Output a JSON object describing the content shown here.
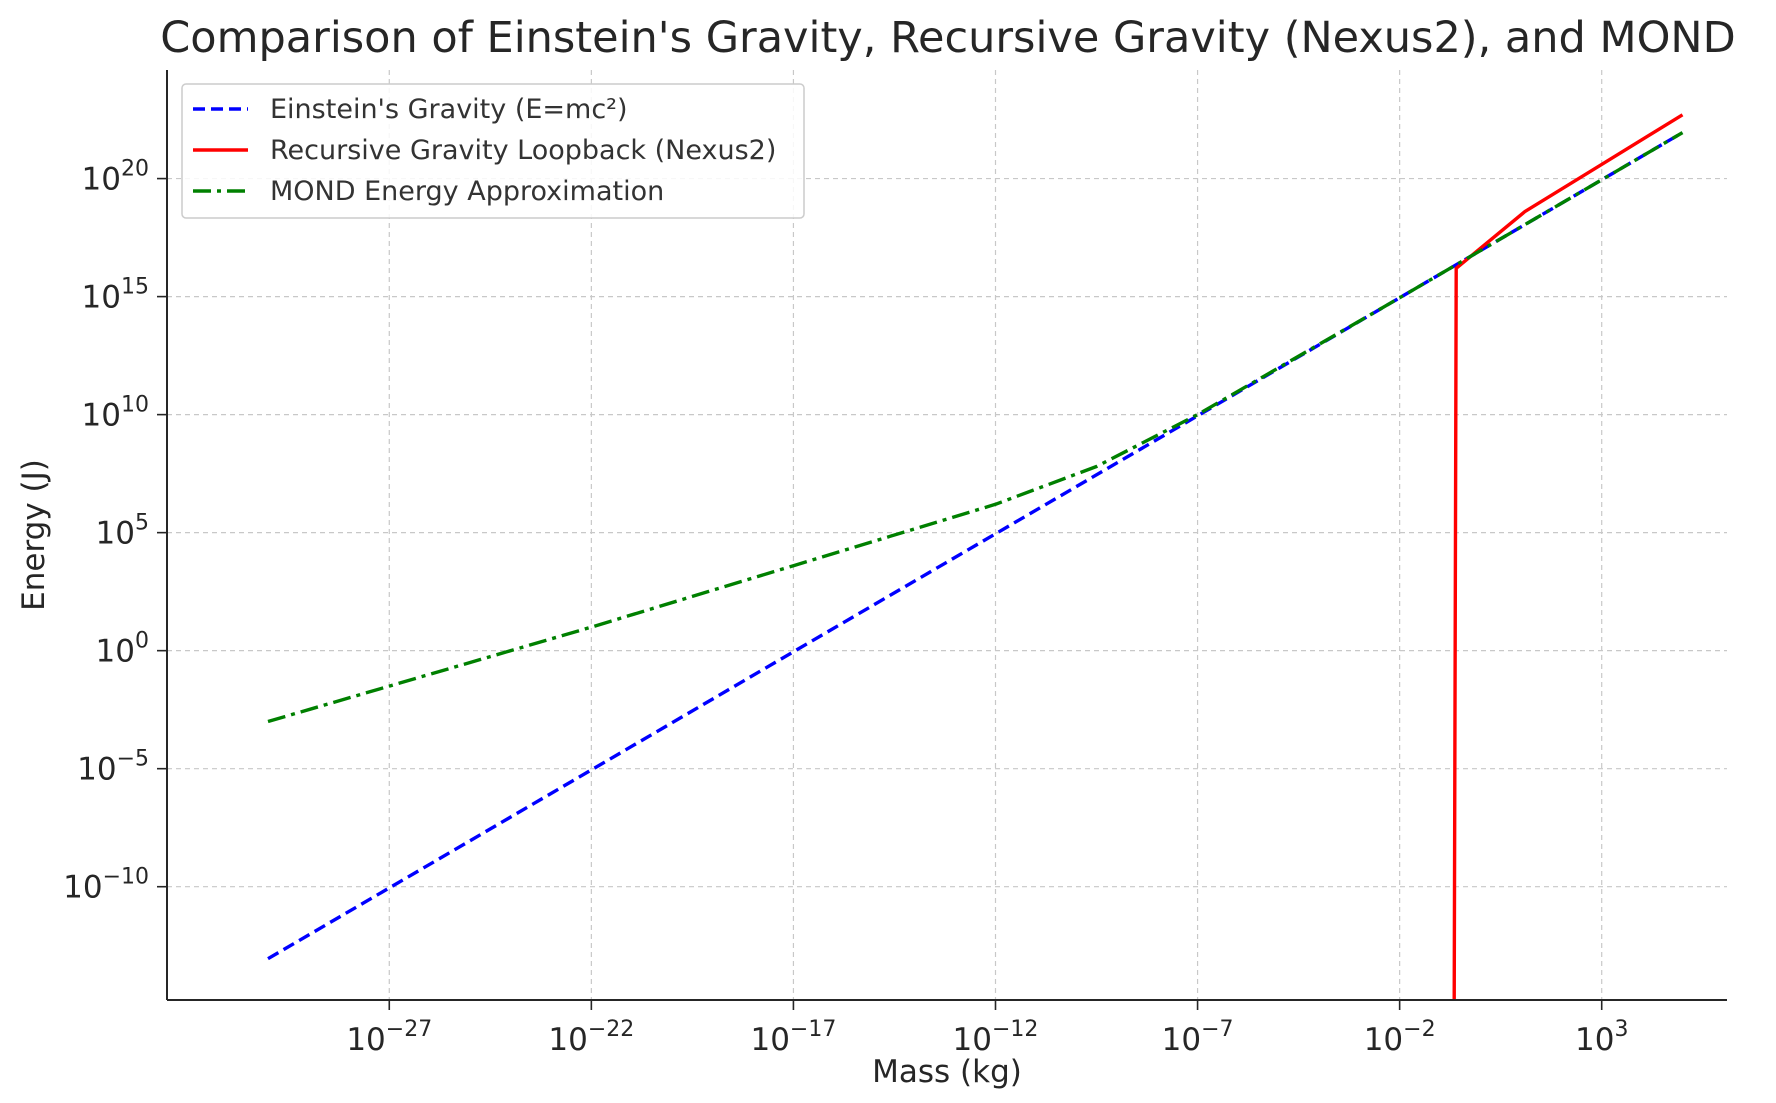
{
  "chart_data": {
    "type": "line",
    "title": "Comparison of Einstein's Gravity, Recursive Gravity (Nexus2), and MOND",
    "xlabel": "Mass (kg)",
    "ylabel": "Energy (J)",
    "xscale": "log",
    "yscale": "log",
    "xlim_exponent": [
      -32.5,
      6.1
    ],
    "ylim_exponent": [
      -14.8,
      24.6
    ],
    "xticks": [
      {
        "base": "10",
        "exp": "−27",
        "value": -27
      },
      {
        "base": "10",
        "exp": "−22",
        "value": -22
      },
      {
        "base": "10",
        "exp": "−17",
        "value": -17
      },
      {
        "base": "10",
        "exp": "−12",
        "value": -12
      },
      {
        "base": "10",
        "exp": "−7",
        "value": -7
      },
      {
        "base": "10",
        "exp": "−2",
        "value": -2
      },
      {
        "base": "10",
        "exp": "3",
        "value": 3
      }
    ],
    "yticks": [
      {
        "base": "10",
        "exp": "20",
        "value": 20
      },
      {
        "base": "10",
        "exp": "15",
        "value": 15
      },
      {
        "base": "10",
        "exp": "10",
        "value": 10
      },
      {
        "base": "10",
        "exp": "5",
        "value": 5
      },
      {
        "base": "10",
        "exp": "0",
        "value": 0
      },
      {
        "base": "10",
        "exp": "−5",
        "value": -5
      },
      {
        "base": "10",
        "exp": "−10",
        "value": -10
      }
    ],
    "grid": true,
    "legend_position": "top-left",
    "series": [
      {
        "name": "Einstein's Gravity (E=mc²)",
        "color": "#0000ff",
        "style": "dashed",
        "points_log10": [
          [
            -30,
            -13.05
          ],
          [
            -27,
            -10.05
          ],
          [
            -22,
            -5.05
          ],
          [
            -17,
            -0.05
          ],
          [
            -12,
            4.95
          ],
          [
            -7,
            9.95
          ],
          [
            -2,
            14.95
          ],
          [
            3,
            19.95
          ],
          [
            5,
            21.95
          ]
        ]
      },
      {
        "name": "Recursive Gravity Loopback (Nexus2)",
        "color": "#ff0000",
        "style": "solid",
        "points_log10": [
          [
            -0.65,
            -14.8
          ],
          [
            -0.6,
            16.2
          ],
          [
            1.1,
            18.6
          ],
          [
            3,
            20.6
          ],
          [
            5,
            22.7
          ]
        ]
      },
      {
        "name": "MOND Energy Approximation",
        "color": "#008000",
        "style": "dashdot",
        "points_log10": [
          [
            -30,
            -3.0
          ],
          [
            -27,
            -1.5
          ],
          [
            -22,
            1.0
          ],
          [
            -17,
            3.6
          ],
          [
            -12,
            6.2
          ],
          [
            -9.5,
            7.8
          ],
          [
            -7,
            10.0
          ],
          [
            -2,
            14.95
          ],
          [
            3,
            19.95
          ],
          [
            5,
            21.95
          ]
        ]
      }
    ]
  }
}
